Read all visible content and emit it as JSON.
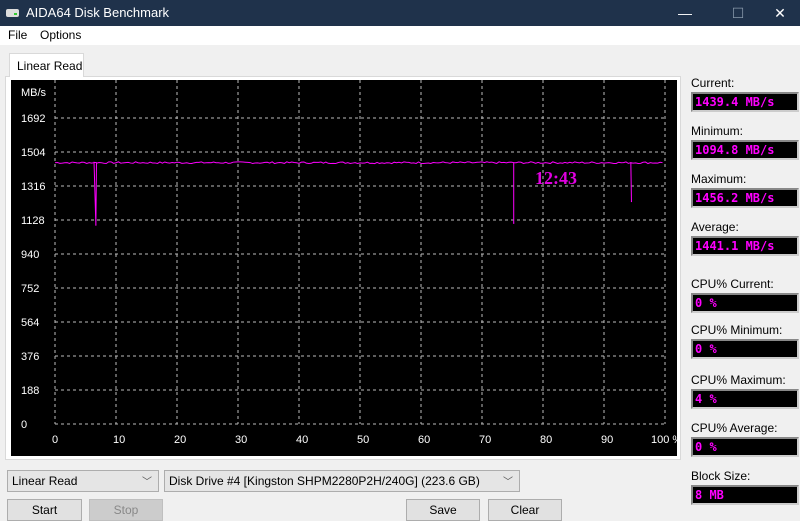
{
  "window": {
    "title": "AIDA64 Disk Benchmark",
    "minimize": "—",
    "maximize": "☐",
    "close": "✕"
  },
  "menu": [
    "File",
    "Options"
  ],
  "tab": "Linear Read",
  "chart_data": {
    "type": "line",
    "ylabel": "MB/s",
    "ylim": [
      0,
      1692
    ],
    "yticks": [
      "0",
      "188",
      "376",
      "564",
      "752",
      "940",
      "1128",
      "1316",
      "1504",
      "1692"
    ],
    "xlim": [
      0,
      100
    ],
    "xticks": [
      "0",
      "10",
      "20",
      "30",
      "40",
      "50",
      "60",
      "70",
      "80",
      "90",
      "100 %"
    ],
    "grid": true,
    "time_label": "12:43",
    "color": "#ff00ff",
    "baseline": 1445,
    "dips": [
      {
        "x": 6.7,
        "y": 1100
      },
      {
        "x": 75.2,
        "y": 1110
      },
      {
        "x": 94.5,
        "y": 1230
      }
    ]
  },
  "stats": [
    {
      "label": "Current:",
      "value": "1439.4 MB/s"
    },
    {
      "label": "Minimum:",
      "value": "1094.8 MB/s"
    },
    {
      "label": "Maximum:",
      "value": "1456.2 MB/s"
    },
    {
      "label": "Average:",
      "value": "1441.1 MB/s"
    },
    {
      "label": "CPU% Current:",
      "value": "0 %"
    },
    {
      "label": "CPU% Minimum:",
      "value": "0 %"
    },
    {
      "label": "CPU% Maximum:",
      "value": "4 %"
    },
    {
      "label": "CPU% Average:",
      "value": "0 %"
    },
    {
      "label": "Block Size:",
      "value": "8 MB"
    }
  ],
  "controls": {
    "test": "Linear Read",
    "drive": "Disk Drive #4  [Kingston SHPM2280P2H/240G]  (223.6 GB)",
    "start": "Start",
    "stop": "Stop",
    "save": "Save",
    "clear": "Clear"
  }
}
